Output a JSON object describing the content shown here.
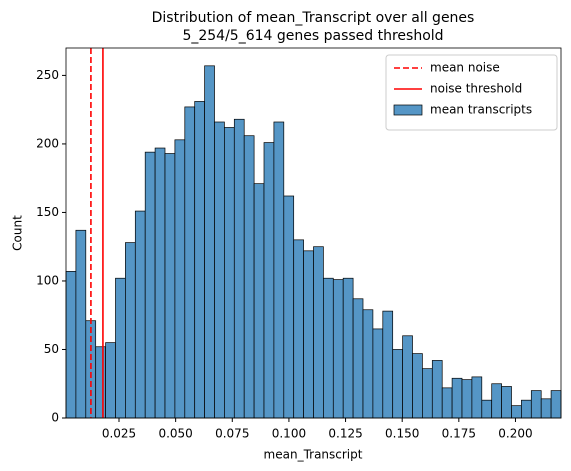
{
  "chart_data": {
    "type": "histogram",
    "title": "Distribution of mean_Transcript over all genes",
    "subtitle": "5_254/5_614 genes passed threshold",
    "x_label": "mean_Transcript",
    "y_label": "Count",
    "bins": [
      0.0016,
      0.00597,
      0.01034,
      0.01471,
      0.01908,
      0.02345,
      0.02782,
      0.03219,
      0.03656,
      0.04093,
      0.0453,
      0.04967,
      0.05404,
      0.05841,
      0.06278,
      0.06715,
      0.07152,
      0.07589,
      0.08026,
      0.08463,
      0.089,
      0.09337,
      0.09774,
      0.10211,
      0.10648,
      0.11085,
      0.11522,
      0.11959,
      0.12396,
      0.12833,
      0.1327,
      0.13707,
      0.14144,
      0.14581,
      0.15018,
      0.15455,
      0.15892,
      0.16329,
      0.16766,
      0.17203,
      0.1764,
      0.18077,
      0.18514,
      0.18951,
      0.19388,
      0.19825,
      0.20262,
      0.20699,
      0.21136,
      0.21573,
      0.2201
    ],
    "series": [
      {
        "name": "mean transcripts",
        "color": "#5596c6",
        "values": [
          107,
          137,
          71,
          52,
          55,
          102,
          128,
          151,
          194,
          197,
          193,
          203,
          227,
          231,
          257,
          216,
          212,
          218,
          206,
          171,
          201,
          216,
          162,
          130,
          122,
          125,
          102,
          101,
          102,
          87,
          79,
          65,
          78,
          50,
          60,
          47,
          36,
          42,
          22,
          29,
          28,
          30,
          13,
          25,
          23,
          9,
          13,
          20,
          14,
          20
        ]
      }
    ],
    "vlines": [
      {
        "name": "mean noise",
        "x": 0.0126,
        "color": "#ff0000",
        "style": "dashed"
      },
      {
        "name": "noise threshold",
        "x": 0.0179,
        "color": "#ff0000",
        "style": "solid"
      }
    ],
    "xlim": [
      0.0016,
      0.2201
    ],
    "ylim": [
      0,
      270
    ],
    "xticks": [
      0.025,
      {
        "value": 0.05,
        "label": "0.050"
      },
      0.075,
      {
        "value": 0.1,
        "label": "0.100"
      },
      0.125,
      {
        "value": 0.15,
        "label": "0.150"
      },
      0.175,
      {
        "value": 0.2,
        "label": "0.200"
      }
    ],
    "yticks": [
      0,
      50,
      100,
      150,
      200,
      250
    ],
    "legend": "upper right"
  }
}
